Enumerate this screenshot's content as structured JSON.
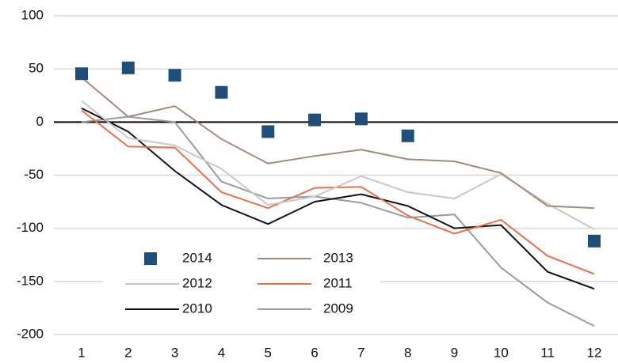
{
  "chart_data": {
    "type": "line",
    "categories": [
      "1",
      "2",
      "3",
      "4",
      "5",
      "6",
      "7",
      "8",
      "9",
      "10",
      "11",
      "12"
    ],
    "series": [
      {
        "name": "2014",
        "color": "#1f4e79",
        "marker": "square",
        "values": [
          45.5,
          51,
          44,
          28,
          -9,
          2,
          3,
          -13,
          null,
          null,
          null,
          -112
        ]
      },
      {
        "name": "2013",
        "color": "#a8887a",
        "values": [
          42,
          5,
          15,
          -16,
          -39,
          -32,
          -26,
          -35,
          -37,
          -48,
          -79,
          -81
        ]
      },
      {
        "name": "2012",
        "color": "#c8c8c8",
        "values": [
          20,
          -15,
          -22,
          -44,
          -78,
          -70,
          -51,
          -66,
          -72,
          -49,
          -77,
          -101
        ]
      },
      {
        "name": "2011",
        "color": "#e8704a",
        "values": [
          11,
          -23,
          -24,
          -66,
          -81,
          -62,
          -61,
          -88,
          -105,
          -92,
          -126,
          -143
        ]
      },
      {
        "name": "2010",
        "color": "#111111",
        "values": [
          13,
          -9,
          -46,
          -78,
          -96,
          -75,
          -68,
          -79,
          -100,
          -97,
          -141,
          -157
        ]
      },
      {
        "name": "2009",
        "color": "#9a9aa6",
        "values": [
          0,
          5,
          0,
          -56,
          -72,
          -70,
          -76,
          -90,
          -87,
          -137,
          -170,
          -192
        ]
      }
    ],
    "ylim": [
      -200,
      100
    ],
    "yticks": [
      -200,
      -150,
      -100,
      -50,
      0,
      50,
      100
    ],
    "grid": true
  }
}
